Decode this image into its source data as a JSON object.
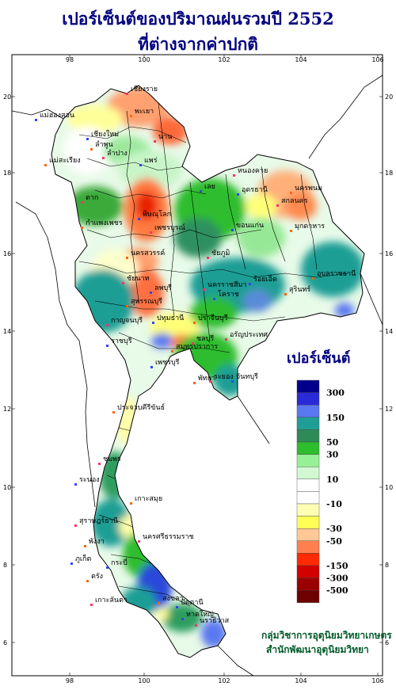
{
  "title": {
    "line1": "เปอร์เซ็นต์ของปริมาณฝนรวมปี 2552",
    "line2": "ที่ต่างจากค่าปกติ"
  },
  "legend": {
    "title": "เปอร์เซ็นต์",
    "labels": [
      "300",
      "150",
      "50",
      "30",
      "10",
      "-10",
      "-30",
      "-50",
      "-150",
      "-300",
      "-500"
    ],
    "colors": [
      "#00008c",
      "#2a2ad8",
      "#5a78f0",
      "#1f9e95",
      "#2e8b57",
      "#2ebd2e",
      "#96f096",
      "#d2f8d2",
      "#ffffff",
      "#ffffff",
      "#ffffb4",
      "#ffff55",
      "#ffc896",
      "#ff7f50",
      "#ff2a00",
      "#d20000",
      "#9b0000",
      "#6e0000"
    ]
  },
  "axes": {
    "lon_labels": [
      "98",
      "100",
      "102",
      "104",
      "106"
    ],
    "lat_labels": [
      "20",
      "18",
      "16",
      "14",
      "12",
      "10",
      "8",
      "6"
    ]
  },
  "places": [
    "เชียงราย",
    "แม่ฮ่องสอน",
    "พะเยา",
    "น่าน",
    "เชียงใหม่",
    "ลำพูน",
    "ลำปาง",
    "แพร่",
    "แม่สะเรียง",
    "หนองคาย",
    "อุดรธานี",
    "นครพนม",
    "สกลนคร",
    "เลย",
    "มุกดาหาร",
    "ตาก",
    "พิษณุโลก",
    "กำแพงเพชร",
    "เพชรบูรณ์",
    "ขอนแก่น",
    "นครสวรรค์",
    "ชัยภูมิ",
    "ร้อยเอ็ด",
    "อุบลราชธานี",
    "ชัยนาท",
    "ลพบุรี",
    "สุรินทร์",
    "นครราชสีมา",
    "โคราช",
    "สุพรรณบุรี",
    "กาญจนบุรี",
    "ปทุมธานี",
    "ปราจีนบุรี",
    "อรัญประเทศ",
    "ราชบุรี",
    "สมุทรปราการ",
    "ชลบุรี",
    "เพชรบุรี",
    "พัทยา",
    "ระยอง",
    "จันทบุรี",
    "ประจวบคีรีขันธ์",
    "ชุมพร",
    "ระนอง",
    "เกาะสมุย",
    "สุราษฎร์ธานี",
    "ภูเก็ต",
    "พังงา",
    "นครศรีธรรมราช",
    "กระบี่",
    "ตรัง",
    "เกาะลันตา",
    "ปัตตานี",
    "สงขลา",
    "นราธิวาส",
    "หาดใหญ่"
  ],
  "credit": {
    "line1": "กลุ่มวิชาการอุตุนิยมวิทยาเกษตร",
    "line2": "สำนักพัฒนาอุตุนิยมวิทยา"
  }
}
